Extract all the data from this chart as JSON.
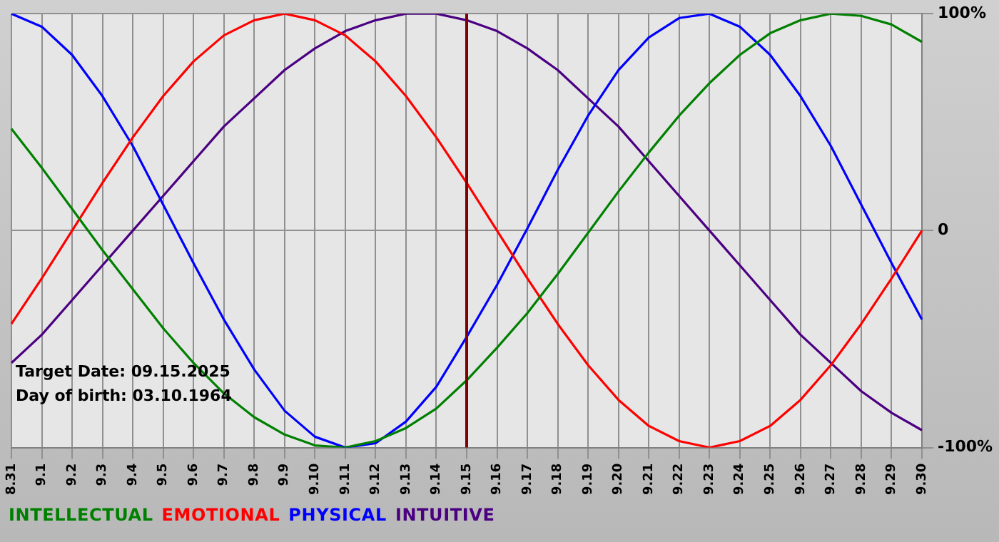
{
  "chart_data": {
    "type": "line",
    "categories": [
      "8.31",
      "9.1",
      "9.2",
      "9.3",
      "9.4",
      "9.5",
      "9.6",
      "9.7",
      "9.8",
      "9.9",
      "9.10",
      "9.11",
      "9.12",
      "9.13",
      "9.14",
      "9.15",
      "9.16",
      "9.17",
      "9.18",
      "9.19",
      "9.20",
      "9.21",
      "9.22",
      "9.23",
      "9.24",
      "9.25",
      "9.26",
      "9.27",
      "9.28",
      "9.29",
      "9.30"
    ],
    "series": [
      {
        "name": "INTELLECTUAL",
        "color": "#008000",
        "values": [
          47,
          29,
          10,
          -9,
          -27,
          -45,
          -61,
          -75,
          -86,
          -94,
          -99,
          -100,
          -97,
          -91,
          -82,
          -69,
          -54,
          -38,
          -20,
          -1,
          18,
          36,
          53,
          68,
          81,
          91,
          97,
          100,
          99,
          95,
          87
        ]
      },
      {
        "name": "EMOTIONAL",
        "color": "#ff0000",
        "values": [
          -43,
          -22,
          0,
          22,
          43,
          62,
          78,
          90,
          97,
          100,
          97,
          90,
          78,
          62,
          43,
          22,
          0,
          -22,
          -43,
          -62,
          -78,
          -90,
          -97,
          -100,
          -97,
          -90,
          -78,
          -62,
          -43,
          -22,
          0
        ]
      },
      {
        "name": "PHYSICAL",
        "color": "#0000ff",
        "values": [
          100,
          94,
          81,
          62,
          39,
          12,
          -15,
          -41,
          -64,
          -83,
          -95,
          -100,
          -98,
          -88,
          -72,
          -49,
          -25,
          1,
          28,
          53,
          74,
          89,
          98,
          100,
          94,
          81,
          62,
          39,
          12,
          -15,
          -41
        ]
      },
      {
        "name": "INTUITIVE",
        "color": "#4b0082",
        "values": [
          -61,
          -48,
          -32,
          -16,
          0,
          16,
          32,
          48,
          61,
          74,
          84,
          92,
          97,
          100,
          100,
          97,
          92,
          84,
          74,
          61,
          48,
          32,
          16,
          0,
          -16,
          -32,
          -48,
          -61,
          -74,
          -84,
          -92
        ]
      }
    ],
    "ylim": [
      -100,
      100
    ],
    "yticks": [
      {
        "value": 100,
        "label": "100%"
      },
      0,
      {
        "value": -100,
        "label": "-100%"
      }
    ],
    "grid": true,
    "marker": "none",
    "legend": "bottom left",
    "ref_lines": [
      {
        "axis": "x",
        "value": "9.15",
        "color": "#800000"
      }
    ],
    "annotations": [
      "Target Date: 09.15.2025",
      "Day of birth: 03.10.1964"
    ]
  }
}
